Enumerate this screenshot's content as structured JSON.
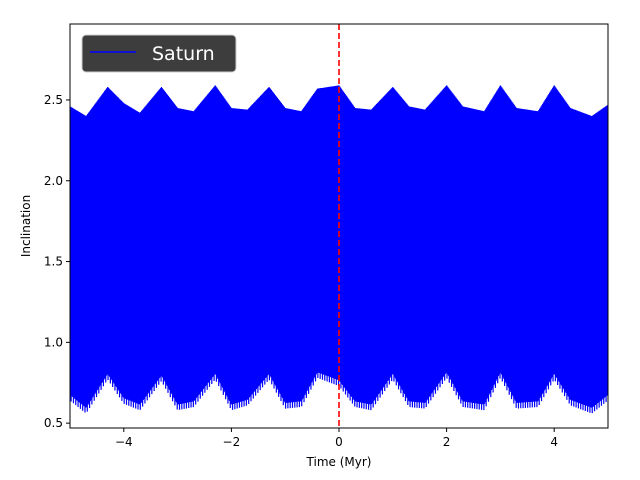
{
  "chart_data": {
    "type": "line",
    "xlabel": "Time (Myr)",
    "ylabel": "Inclination",
    "xlim": [
      -5,
      5
    ],
    "ylim": [
      0.47,
      2.97
    ],
    "x_ticks": [
      -4,
      -2,
      0,
      2,
      4
    ],
    "x_tick_labels": [
      "−4",
      "−2",
      "0",
      "2",
      "4"
    ],
    "y_ticks": [
      0.5,
      1.0,
      1.5,
      2.0,
      2.5
    ],
    "y_tick_labels": [
      "0.5",
      "1.0",
      "1.5",
      "2.0",
      "2.5"
    ],
    "grid": false,
    "legend": {
      "position": "top-left",
      "background": "#333333"
    },
    "series": [
      {
        "name": "Saturn",
        "color": "#0000ff",
        "envelope_upper_x": [
          -5.0,
          -4.7,
          -4.3,
          -4.0,
          -3.7,
          -3.3,
          -3.0,
          -2.7,
          -2.3,
          -2.0,
          -1.7,
          -1.3,
          -1.0,
          -0.7,
          -0.4,
          0.0,
          0.3,
          0.6,
          1.0,
          1.3,
          1.6,
          2.0,
          2.3,
          2.7,
          3.0,
          3.3,
          3.7,
          4.0,
          4.3,
          4.7,
          5.0
        ],
        "envelope_upper_y": [
          2.44,
          2.38,
          2.56,
          2.46,
          2.4,
          2.56,
          2.43,
          2.41,
          2.57,
          2.43,
          2.42,
          2.56,
          2.43,
          2.41,
          2.55,
          2.57,
          2.43,
          2.42,
          2.56,
          2.44,
          2.42,
          2.57,
          2.44,
          2.41,
          2.57,
          2.43,
          2.41,
          2.57,
          2.43,
          2.38,
          2.45
        ],
        "envelope_lower_x": [
          -5.0,
          -4.7,
          -4.3,
          -4.0,
          -3.7,
          -3.3,
          -3.0,
          -2.7,
          -2.3,
          -2.0,
          -1.7,
          -1.3,
          -1.0,
          -0.7,
          -0.4,
          0.0,
          0.3,
          0.6,
          1.0,
          1.3,
          1.6,
          2.0,
          2.3,
          2.7,
          3.0,
          3.3,
          3.7,
          4.0,
          4.3,
          4.7,
          5.0
        ],
        "envelope_lower_y": [
          0.66,
          0.58,
          0.79,
          0.64,
          0.6,
          0.78,
          0.6,
          0.62,
          0.79,
          0.6,
          0.63,
          0.79,
          0.61,
          0.62,
          0.8,
          0.75,
          0.62,
          0.6,
          0.79,
          0.62,
          0.61,
          0.8,
          0.62,
          0.6,
          0.8,
          0.61,
          0.62,
          0.79,
          0.63,
          0.58,
          0.66
        ]
      }
    ],
    "vertical_line": {
      "x": 0,
      "color": "#ff0000",
      "style": "dashed"
    }
  }
}
